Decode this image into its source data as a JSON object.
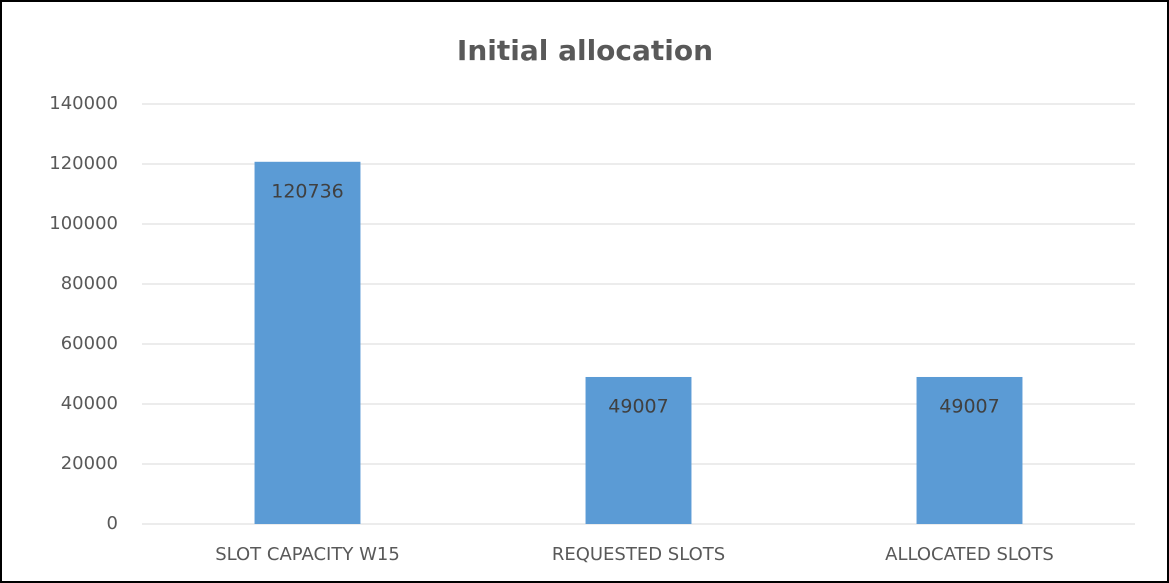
{
  "chart_data": {
    "type": "bar",
    "title": "Initial allocation",
    "categories": [
      "SLOT CAPACITY W15",
      "REQUESTED SLOTS",
      "ALLOCATED SLOTS"
    ],
    "values": [
      120736,
      49007,
      49007
    ],
    "color": "#5b9bd5",
    "ylim": [
      0,
      140000
    ],
    "yticks": [
      0,
      20000,
      40000,
      60000,
      80000,
      100000,
      120000,
      140000
    ],
    "grid": true,
    "data_labels": true
  }
}
